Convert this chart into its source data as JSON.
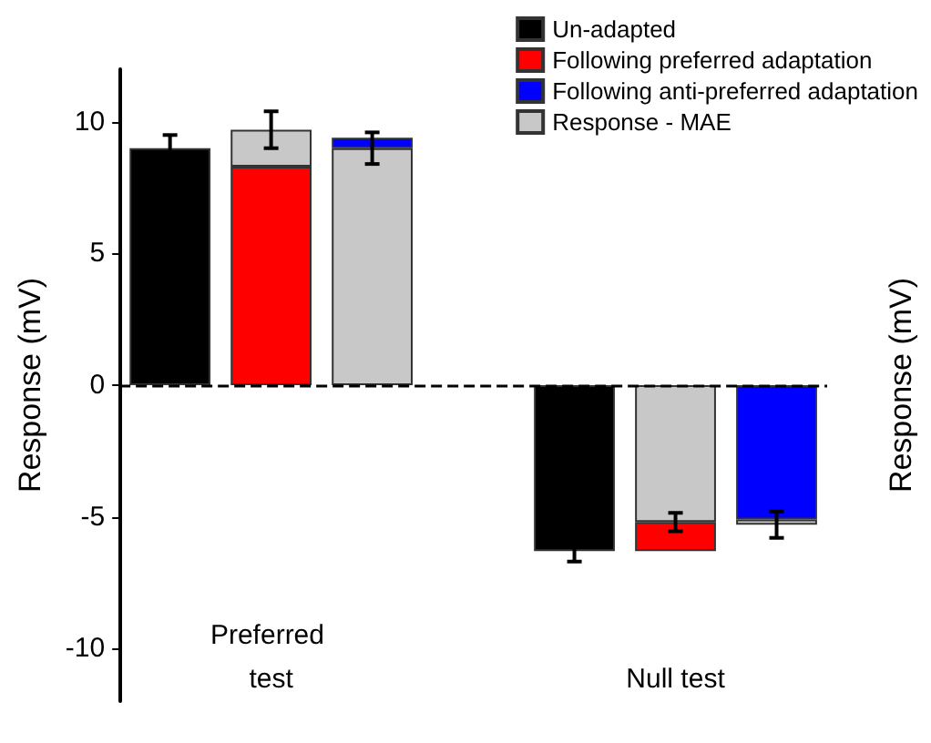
{
  "chart_data": {
    "type": "bar",
    "stacked": true,
    "ylabel": "Response (mV)",
    "y2label": "Response (mV)",
    "categories": [
      null,
      "Preferred test",
      null,
      null,
      null,
      "Null test",
      null
    ],
    "series": [
      {
        "name": "Un-adapted",
        "color": "#000000",
        "values": [
          9.0,
          null,
          null,
          null,
          -6.3,
          null,
          null
        ],
        "errors": [
          0.5,
          null,
          null,
          null,
          0.4,
          null,
          null
        ]
      },
      {
        "color": "#c8c8c8",
        "values": [
          null,
          null,
          9.0,
          null,
          null,
          -5.2,
          null
        ],
        "errors": [
          null,
          null,
          0.6,
          null,
          null,
          0.35,
          null
        ]
      },
      {
        "name": "Following preferred adaptation",
        "color": "#ff0000",
        "values": [
          null,
          8.3,
          null,
          null,
          null,
          -1.1,
          null
        ]
      },
      {
        "name": "Following anti-preferred adaptation",
        "color": "#0000ff",
        "values": [
          null,
          null,
          0.4,
          null,
          null,
          null,
          -5.1
        ]
      },
      {
        "name": "Response - MAE",
        "color": "#c8c8c8",
        "values": [
          null,
          1.4,
          null,
          null,
          null,
          null,
          -0.2
        ],
        "errors": [
          null,
          0.7,
          null,
          null,
          null,
          null,
          0.5
        ]
      }
    ],
    "ylim": [
      -12,
      12
    ],
    "yticks": [
      -10,
      -5,
      0,
      5,
      10
    ],
    "grid": false,
    "legend": "top right",
    "ref_lines": [
      {
        "axis": "y",
        "value": 0,
        "color": "#000000",
        "line_style": "dashed"
      }
    ]
  }
}
